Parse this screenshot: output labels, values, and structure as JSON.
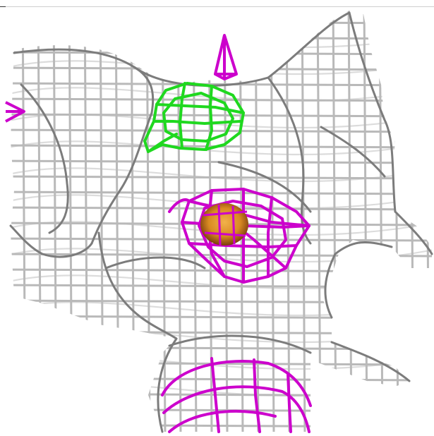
{
  "scene": {
    "description_visible_text": "",
    "colors": {
      "background": "#ffffff",
      "mesh_light": "#d9d9d9",
      "mesh_mid": "#b5b5b5",
      "mesh_dark": "#6f6f6f",
      "contour_green": "#22dd22",
      "contour_magenta": "#cc00cc",
      "core_orange": "#e39a2b",
      "core_dark": "#8a4a10"
    },
    "icons": {
      "cone_marker": "magenta-cone-marker-icon",
      "side_marker": "magenta-side-marker-icon"
    }
  }
}
